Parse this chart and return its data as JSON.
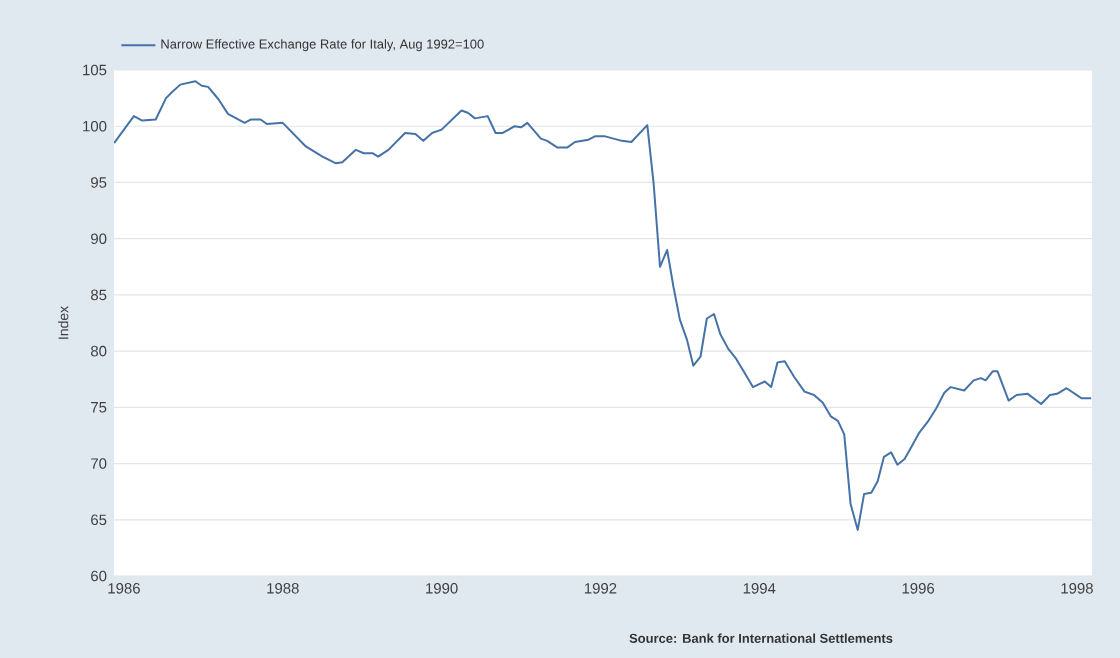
{
  "chart_data": {
    "type": "line",
    "ylabel": "Index",
    "annotations": [
      "Source: Bank for International Settlements"
    ],
    "xlim": [
      1985.875,
      1998.19
    ],
    "xticks": [
      1986,
      1988,
      1990,
      1992,
      1994,
      1996,
      1998
    ],
    "ylim": [
      60,
      105
    ],
    "yticks": [
      60,
      65,
      70,
      75,
      80,
      85,
      90,
      95,
      100,
      105
    ],
    "grid": "y",
    "legend": "top left",
    "marker": "none",
    "line_style": "solid",
    "series": [
      {
        "name": "Narrow Effective Exchange Rate for Italy, Aug 1992=100",
        "color": "#4572a7",
        "x": [
          1985.875,
          1986.125,
          1986.23,
          1986.4,
          1986.53,
          1986.6,
          1986.71,
          1986.9,
          1986.98,
          1987.06,
          1987.19,
          1987.31,
          1987.52,
          1987.6,
          1987.72,
          1987.8,
          1988.0,
          1988.29,
          1988.5,
          1988.67,
          1988.75,
          1988.92,
          1989.02,
          1989.13,
          1989.2,
          1989.33,
          1989.54,
          1989.67,
          1989.77,
          1989.88,
          1990.0,
          1990.25,
          1990.33,
          1990.42,
          1990.58,
          1990.68,
          1990.77,
          1990.92,
          1991.0,
          1991.08,
          1991.25,
          1991.33,
          1991.46,
          1991.58,
          1991.68,
          1991.85,
          1991.93,
          1992.06,
          1992.27,
          1992.39,
          1992.59,
          1992.67,
          1992.75,
          1992.84,
          1992.92,
          1993.0,
          1993.09,
          1993.17,
          1993.26,
          1993.34,
          1993.43,
          1993.51,
          1993.61,
          1993.71,
          1993.82,
          1993.92,
          1994.07,
          1994.15,
          1994.23,
          1994.32,
          1994.44,
          1994.57,
          1994.69,
          1994.8,
          1994.9,
          1994.99,
          1995.07,
          1995.15,
          1995.24,
          1995.32,
          1995.41,
          1995.49,
          1995.57,
          1995.66,
          1995.74,
          1995.83,
          1995.91,
          1996.01,
          1996.12,
          1996.22,
          1996.33,
          1996.41,
          1996.58,
          1996.7,
          1996.79,
          1996.85,
          1996.94,
          1997.0,
          1997.14,
          1997.24,
          1997.38,
          1997.55,
          1997.66,
          1997.75,
          1997.87,
          1998.06,
          1998.18
        ],
        "values": [
          98.5,
          100.9,
          100.5,
          100.6,
          102.5,
          103.0,
          103.7,
          104.0,
          103.6,
          103.5,
          102.4,
          101.1,
          100.3,
          100.6,
          100.6,
          100.2,
          100.3,
          98.2,
          97.3,
          96.7,
          96.8,
          97.9,
          97.6,
          97.6,
          97.3,
          97.9,
          99.4,
          99.3,
          98.7,
          99.4,
          99.7,
          101.4,
          101.2,
          100.7,
          100.9,
          99.4,
          99.4,
          100.0,
          99.9,
          100.3,
          98.9,
          98.7,
          98.1,
          98.1,
          98.6,
          98.8,
          99.1,
          99.1,
          98.7,
          98.6,
          100.1,
          94.9,
          87.5,
          89.0,
          85.7,
          82.8,
          81.0,
          78.7,
          79.5,
          82.9,
          83.3,
          81.5,
          80.2,
          79.3,
          78.0,
          76.8,
          77.3,
          76.8,
          79.0,
          79.1,
          77.7,
          76.4,
          76.1,
          75.4,
          74.2,
          73.8,
          72.6,
          66.4,
          64.1,
          67.3,
          67.4,
          68.4,
          70.6,
          71.0,
          69.9,
          70.4,
          71.4,
          72.7,
          73.7,
          74.8,
          76.3,
          76.8,
          76.5,
          77.4,
          77.6,
          77.4,
          78.2,
          78.2,
          75.6,
          76.1,
          76.2,
          75.3,
          76.1,
          76.2,
          76.7,
          75.8,
          75.8
        ]
      }
    ]
  }
}
